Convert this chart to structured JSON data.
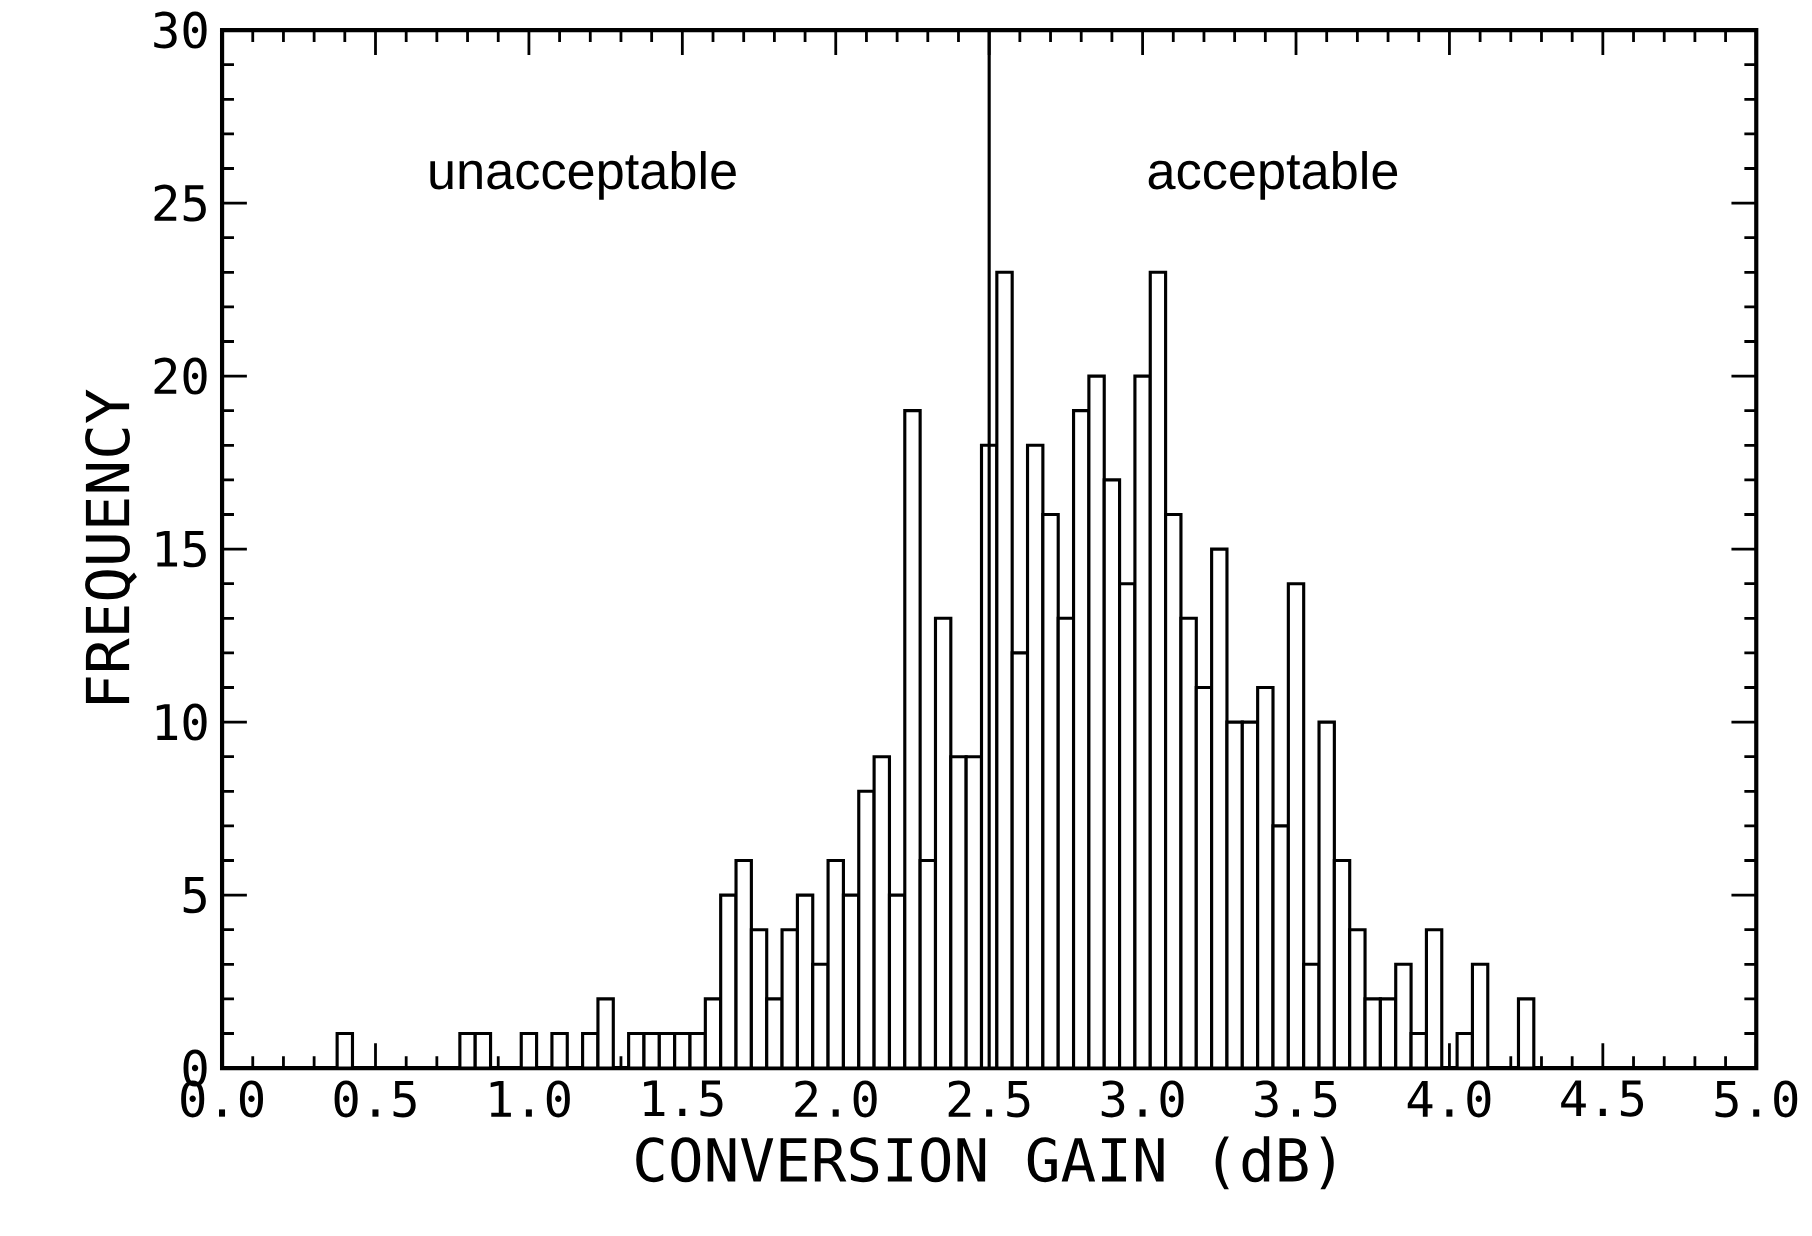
{
  "chart_data": {
    "type": "histogram",
    "xlabel": "CONVERSION GAIN (dB)",
    "ylabel": "FREQUENCY",
    "bins": [
      0.375,
      0.425,
      0.475,
      0.525,
      0.575,
      0.625,
      0.675,
      0.725,
      0.775,
      0.825,
      0.875,
      0.925,
      0.975,
      1.025,
      1.075,
      1.125,
      1.175,
      1.225,
      1.275,
      1.325,
      1.375,
      1.425,
      1.475,
      1.525,
      1.575,
      1.625,
      1.675,
      1.725,
      1.775,
      1.825,
      1.875,
      1.925,
      1.975,
      2.025,
      2.075,
      2.125,
      2.175,
      2.225,
      2.275,
      2.325,
      2.375,
      2.425,
      2.475,
      2.525,
      2.575,
      2.625,
      2.675,
      2.725,
      2.775,
      2.825,
      2.875,
      2.925,
      2.975,
      3.025,
      3.075,
      3.125,
      3.175,
      3.225,
      3.275,
      3.325,
      3.375,
      3.425,
      3.475,
      3.525,
      3.575,
      3.625,
      3.675,
      3.725,
      3.775,
      3.825,
      3.875,
      3.925,
      3.975,
      4.025,
      4.075,
      4.125,
      4.175,
      4.225,
      4.275
    ],
    "values": [
      1,
      0,
      0,
      0,
      0,
      0,
      0,
      0,
      1,
      1,
      0,
      0,
      1,
      0,
      1,
      0,
      1,
      2,
      0,
      1,
      1,
      1,
      1,
      1,
      2,
      5,
      6,
      4,
      2,
      4,
      5,
      3,
      6,
      5,
      8,
      9,
      5,
      19,
      6,
      13,
      9,
      9,
      18,
      23,
      12,
      18,
      16,
      13,
      19,
      20,
      17,
      14,
      20,
      23,
      16,
      13,
      11,
      15,
      10,
      10,
      11,
      7,
      14,
      3,
      10,
      6,
      4,
      2,
      2,
      3,
      1,
      4,
      0,
      1,
      3,
      0,
      0,
      2
    ],
    "color": "#000000",
    "xlim": [
      0,
      5
    ],
    "ylim": [
      0,
      30
    ],
    "xticks": [
      {
        "value": 0,
        "label": "0.0"
      },
      0.5,
      {
        "value": 1,
        "label": "1.0"
      },
      1.5,
      {
        "value": 2,
        "label": "2.0"
      },
      2.5,
      {
        "value": 3,
        "label": "3.0"
      },
      3.5,
      {
        "value": 4,
        "label": "4.0"
      },
      4.5,
      {
        "value": 5,
        "label": "5.0"
      }
    ],
    "yticks": [
      0,
      5,
      10,
      15,
      20,
      25,
      30
    ],
    "ref_lines": [
      {
        "axis": "x",
        "value": 2.5,
        "color": "#000000"
      }
    ],
    "annotations": [
      "unacceptable",
      "acceptable"
    ]
  }
}
